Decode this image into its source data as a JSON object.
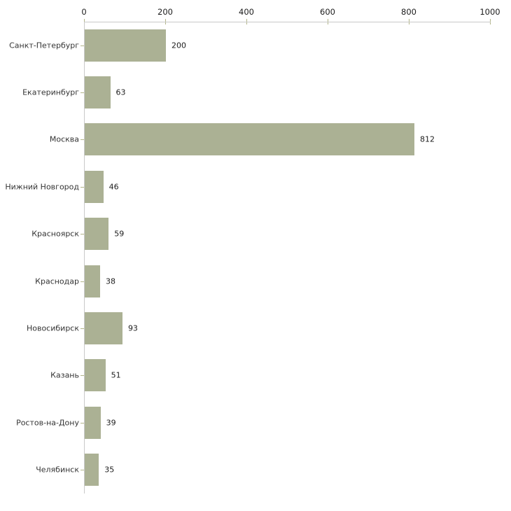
{
  "chart_data": {
    "type": "bar",
    "orientation": "horizontal",
    "title": "",
    "xlabel": "",
    "ylabel": "",
    "categories": [
      "Санкт-Петербург",
      "Екатеринбург",
      "Москва",
      "Нижний Новгород",
      "Красноярск",
      "Краснодар",
      "Новосибирск",
      "Казань",
      "Ростов-на-Дону",
      "Челябинск"
    ],
    "values": [
      200,
      63,
      812,
      46,
      59,
      38,
      93,
      51,
      39,
      35
    ],
    "value_labels": [
      "200",
      "63",
      "812",
      "46",
      "59",
      "38",
      "93",
      "51",
      "39",
      "35"
    ],
    "x_ticks": [
      "0",
      "200",
      "400",
      "600",
      "800",
      "1000"
    ],
    "x_tick_values": [
      0,
      200,
      400,
      600,
      800,
      1000
    ],
    "xlim": [
      0,
      1000
    ],
    "grid": false,
    "legend": false,
    "axis_position": "top",
    "colors": {
      "bar": "#abb194",
      "axis_line": "#c9c9c9",
      "tick_mark": "#b3b68a",
      "category_text": "#343434",
      "value_text": "#1c1c1c",
      "background": "#ffffff"
    }
  }
}
